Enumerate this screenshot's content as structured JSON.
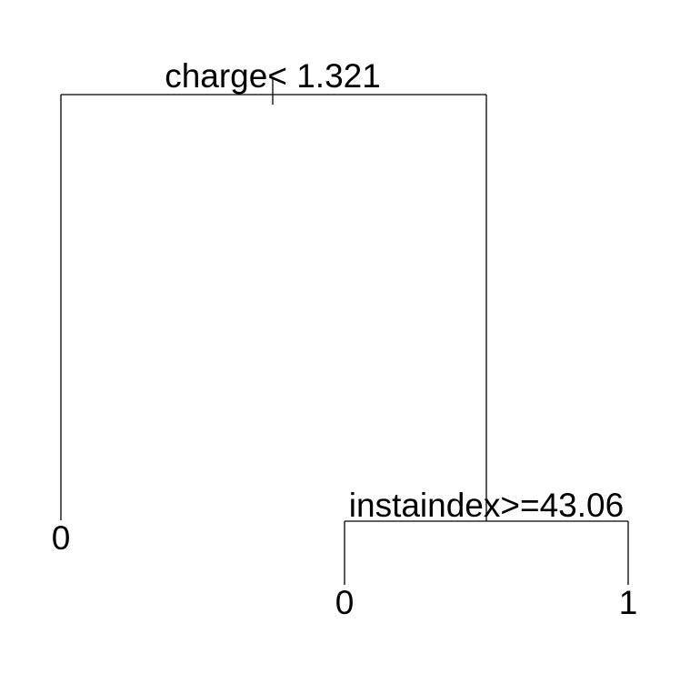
{
  "tree": {
    "root": {
      "split": "charge< 1.321",
      "left_leaf": "0",
      "right": {
        "split": "instaindex>=43.06",
        "left_leaf": "0",
        "right_leaf": "1"
      }
    }
  },
  "colors": {
    "line": "#000000",
    "text": "#000000",
    "background": "#ffffff"
  }
}
